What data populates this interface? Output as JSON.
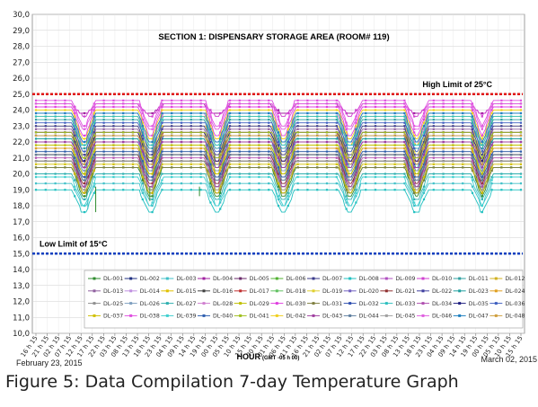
{
  "caption": "Figure 5: Data Compilation 7-day Temperature Graph",
  "chart_data": {
    "type": "line",
    "title": "SECTION 1: DISPENSARY STORAGE AREA (ROOM# 119)",
    "xlabel": "HOUR",
    "xlabel_sub": "(GMT -05 h 00)",
    "ylabel": "",
    "ylim": [
      10,
      30
    ],
    "y_ticks": [
      "10,0",
      "11,0",
      "12,0",
      "13,0",
      "14,0",
      "15,0",
      "16,0",
      "17,0",
      "18,0",
      "19,0",
      "20,0",
      "21,0",
      "22,0",
      "23,0",
      "24,0",
      "25,0",
      "26,0",
      "27,0",
      "28,0",
      "29,0",
      "30,0"
    ],
    "grid": true,
    "x_ticks": [
      "16 h 15",
      "21 h 15",
      "02 h 15",
      "07 h 15",
      "12 h 15",
      "17 h 15",
      "22 h 15",
      "03 h 15",
      "08 h 15",
      "13 h 15",
      "18 h 15",
      "23 h 15",
      "04 h 15",
      "09 h 15",
      "14 h 15",
      "19 h 15",
      "00 h 15",
      "05 h 15",
      "10 h 15",
      "15 h 15",
      "20 h 15",
      "01 h 15",
      "06 h 15",
      "11 h 15",
      "16 h 15",
      "21 h 15",
      "02 h 15",
      "07 h 15",
      "12 h 15",
      "17 h 15",
      "22 h 15",
      "03 h 15",
      "08 h 15",
      "13 h 15",
      "18 h 15",
      "23 h 15",
      "04 h 15",
      "09 h 15",
      "14 h 15",
      "19 h 15",
      "00 h 15",
      "05 h 15",
      "10 h 15",
      "15 h 15"
    ],
    "start_date_label": "February 23, 2015",
    "end_date_label": "March 02, 2015",
    "high_limit": {
      "value": 25,
      "label": "High Limit of 25°C",
      "color": "#e01010"
    },
    "low_limit": {
      "value": 15,
      "label": "Low Limit of 15°C",
      "color": "#1040c0"
    },
    "legend_placement": "bottom",
    "series_names": [
      "DL-001",
      "DL-002",
      "DL-003",
      "DL-004",
      "DL-005",
      "DL-006",
      "DL-007",
      "DL-008",
      "DL-009",
      "DL-010",
      "DL-011",
      "DL-012",
      "DL-013",
      "DL-014",
      "DL-015",
      "DL-016",
      "DL-017",
      "DL-018",
      "DL-019",
      "DL-020",
      "DL-021",
      "DL-022",
      "DL-023",
      "DL-024",
      "DL-025",
      "DL-026",
      "DL-027",
      "DL-028",
      "DL-029",
      "DL-030",
      "DL-031",
      "DL-032",
      "DL-033",
      "DL-034",
      "DL-035",
      "DL-036",
      "DL-037",
      "DL-038",
      "DL-039",
      "DL-040",
      "DL-041",
      "DL-042",
      "DL-043",
      "DL-044",
      "DL-045",
      "DL-046",
      "DL-047",
      "DL-048"
    ],
    "series_colors": [
      "#2e8b2e",
      "#203080",
      "#40c0c8",
      "#a020a0",
      "#6a2a6a",
      "#50b030",
      "#3a3a8a",
      "#20c0c0",
      "#b050c0",
      "#d040d0",
      "#30a0a0",
      "#d0b020",
      "#9060a0",
      "#c090e0",
      "#e0c000",
      "#404040",
      "#c03030",
      "#60c060",
      "#e0d030",
      "#7060c0",
      "#903030",
      "#4040a0",
      "#20a0a0",
      "#e0a020",
      "#909090",
      "#80a0c0",
      "#30b0b0",
      "#d080d0",
      "#c0c000",
      "#e040e0",
      "#808040",
      "#3050b0",
      "#30c0c0",
      "#b050b0",
      "#202080",
      "#4060c0",
      "#d0c000",
      "#e050e0",
      "#40d0d0",
      "#3060b0",
      "#a0c020",
      "#f0d020",
      "#a040a0",
      "#6080a0",
      "#a0a0a0",
      "#e060e0",
      "#2080c0",
      "#d0a040"
    ],
    "series_base": [
      19.5,
      19.8,
      18.7,
      24.0,
      20.2,
      20.8,
      21.5,
      18.3,
      21.2,
      24.0,
      22.4,
      19.9,
      21.9,
      20.6,
      22.7,
      20.0,
      21.6,
      20.4,
      22.1,
      21.1,
      20.3,
      22.0,
      21.3,
      20.7,
      20.5,
      21.0,
      19.2,
      22.8,
      20.9,
      23.3,
      19.6,
      21.4,
      22.6,
      20.1,
      21.7,
      22.3,
      19.7,
      23.8,
      18.9,
      20.6,
      21.8,
      23.1,
      21.2,
      20.4,
      19.9,
      23.6,
      22.9,
      21.5
    ],
    "series_amplitude": [
      1.8,
      1.9,
      1.5,
      0.6,
      1.9,
      1.7,
      1.6,
      1.5,
      1.7,
      0.7,
      1.8,
      1.7,
      1.7,
      1.8,
      1.8,
      1.7,
      1.8,
      1.7,
      1.8,
      1.8,
      1.7,
      1.8,
      1.7,
      1.7,
      1.7,
      1.7,
      1.7,
      1.8,
      1.7,
      1.8,
      1.7,
      1.8,
      1.8,
      1.7,
      1.7,
      1.8,
      1.7,
      1.7,
      1.6,
      1.7,
      1.7,
      1.8,
      1.7,
      1.7,
      1.7,
      1.7,
      1.8,
      1.7
    ],
    "daily_peaks_tick_index": [
      1.3,
      7.2,
      13.1,
      19.0,
      24.9,
      30.8,
      36.7,
      42.4
    ],
    "anomalies": [
      {
        "series": "DL-001",
        "tick_index": 5.3,
        "value": 17.6
      },
      {
        "series": "DL-001",
        "tick_index": 10.1,
        "value": 18.3
      },
      {
        "series": "DL-001",
        "tick_index": 14.5,
        "value": 18.6
      },
      {
        "series": "DL-003",
        "tick_index": 4.6,
        "value": 17.8
      }
    ]
  }
}
